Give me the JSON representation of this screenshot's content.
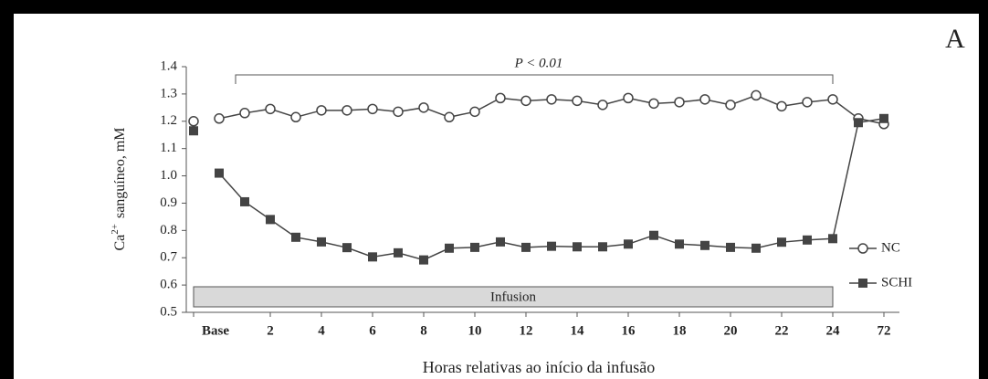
{
  "chart_data": {
    "type": "line",
    "panel_label": "A",
    "ylabel_base": "Ca",
    "ylabel_sup": "2+",
    "ylabel_rest": "sanguíneo, mM",
    "xlabel": "Horas relativas ao início da infusão",
    "annotation": "P < 0.01",
    "band_label": "Infusion",
    "categories": [
      "Base",
      null,
      null,
      "2",
      null,
      "4",
      null,
      "6",
      null,
      "8",
      null,
      "10",
      null,
      "12",
      null,
      "14",
      null,
      "16",
      null,
      "18",
      null,
      "20",
      null,
      "22",
      null,
      "24",
      null,
      "72"
    ],
    "series": [
      {
        "name": "NC",
        "color": "#444444",
        "marker": "circle",
        "error": 0.01,
        "values": [
          1.2,
          1.21,
          1.23,
          1.245,
          1.215,
          1.24,
          1.24,
          1.245,
          1.235,
          1.25,
          1.215,
          1.235,
          1.285,
          1.275,
          1.28,
          1.275,
          1.26,
          1.285,
          1.265,
          1.27,
          1.28,
          1.26,
          1.295,
          1.255,
          1.27,
          1.28,
          1.21,
          1.19
        ]
      },
      {
        "name": "SCHI",
        "color": "#444444",
        "marker": "square",
        "error": 0.01,
        "values": [
          1.165,
          1.01,
          0.905,
          0.84,
          0.775,
          0.758,
          0.737,
          0.703,
          0.718,
          0.692,
          0.735,
          0.738,
          0.758,
          0.738,
          0.742,
          0.74,
          0.74,
          0.75,
          0.782,
          0.75,
          0.745,
          0.738,
          0.735,
          0.757,
          0.765,
          0.77,
          1.195,
          1.21
        ]
      }
    ],
    "ylim": [
      0.5,
      1.4
    ],
    "yticks": [
      {
        "value": 0.5,
        "label": "0.5"
      },
      {
        "value": 0.6,
        "label": "0.6"
      },
      {
        "value": 0.7,
        "label": "0.7"
      },
      {
        "value": 0.8,
        "label": "0.8"
      },
      {
        "value": 0.9,
        "label": "0.9"
      },
      {
        "value": 1.0,
        "label": "1.0"
      },
      {
        "value": 1.1,
        "label": "1.1"
      },
      {
        "value": 1.2,
        "label": "1.2"
      },
      {
        "value": 1.3,
        "label": "1.3"
      },
      {
        "value": 1.4,
        "label": "1.4"
      }
    ],
    "legend": "right"
  }
}
